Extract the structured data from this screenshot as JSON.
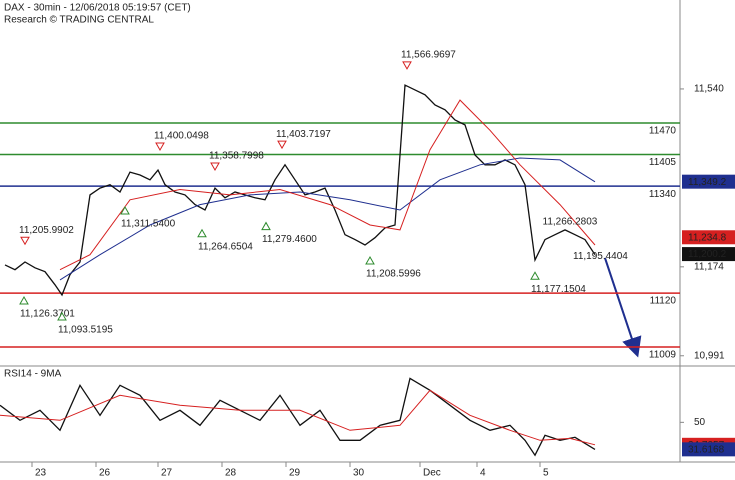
{
  "chart_data": [
    {
      "type": "line",
      "title": "DAX - 30min - 12/06/2018 05:19:57 (CET)",
      "subtitle": "Research © TRADING CENTRAL",
      "xlim": [
        0,
        136
      ],
      "xticks": [
        {
          "value": 6.4,
          "label": "23"
        },
        {
          "value": 19.2,
          "label": "26"
        },
        {
          "value": 31.6,
          "label": "27"
        },
        {
          "value": 44.4,
          "label": "28"
        },
        {
          "value": 57.2,
          "label": "29"
        },
        {
          "value": 70,
          "label": "30"
        },
        {
          "value": 84,
          "label": "Dec"
        },
        {
          "value": 95.4,
          "label": "4"
        },
        {
          "value": 108,
          "label": "5"
        }
      ],
      "ylim": [
        10972,
        11723
      ],
      "yticks": [
        {
          "value": 11540,
          "label": "11,540"
        },
        {
          "value": 11174,
          "label": "11,174"
        },
        {
          "value": 10991,
          "label": "10,991"
        }
      ],
      "series": [
        {
          "color": "#111111",
          "x": [
            1,
            3,
            5,
            7,
            9,
            11,
            12.4,
            14,
            16,
            18,
            20,
            22,
            24,
            26,
            28,
            30,
            31.6,
            33,
            35,
            37,
            39,
            41,
            43,
            45,
            47,
            49,
            51,
            53,
            55,
            57,
            59,
            61,
            63,
            65,
            67,
            69,
            71,
            73,
            75,
            77,
            79,
            81,
            83,
            85,
            87,
            89,
            91,
            93,
            95,
            97,
            99,
            101,
            103,
            105,
            107,
            109,
            111,
            113,
            115,
            117,
            119
          ],
          "values": [
            11178,
            11168,
            11184,
            11172,
            11164,
            11137,
            11116,
            11158,
            11184,
            11322,
            11336,
            11343,
            11328,
            11369,
            11363,
            11353,
            11373,
            11343,
            11328,
            11322,
            11302,
            11291,
            11336,
            11316,
            11328,
            11322,
            11316,
            11312,
            11353,
            11384,
            11353,
            11322,
            11328,
            11336,
            11291,
            11240,
            11230,
            11219,
            11234,
            11254,
            11260,
            11548,
            11538,
            11528,
            11507,
            11497,
            11476,
            11466,
            11404,
            11384,
            11384,
            11394,
            11384,
            11343,
            11188,
            11230,
            11240,
            11250,
            11240,
            11230,
            11199
          ]
        },
        {
          "color": "#1f2f8f",
          "x": [
            12,
            20,
            30,
            40,
            50,
            60,
            70,
            80,
            88,
            96,
            104,
            112,
            119
          ],
          "values": [
            11147,
            11199,
            11260,
            11302,
            11322,
            11328,
            11312,
            11291,
            11353,
            11384,
            11398,
            11394,
            11349
          ]
        },
        {
          "color": "#d62020",
          "x": [
            12,
            18,
            26,
            36,
            46,
            56,
            66,
            74,
            80,
            86,
            92,
            98,
            104,
            112,
            119
          ],
          "values": [
            11168,
            11199,
            11312,
            11333,
            11322,
            11333,
            11302,
            11260,
            11250,
            11415,
            11517,
            11455,
            11384,
            11302,
            11219
          ]
        }
      ],
      "levels": [
        {
          "value": 11470,
          "color": "#2e8b2e"
        },
        {
          "value": 11405,
          "color": "#2e8b2e"
        },
        {
          "value": 11340,
          "color": "#1f2f8f"
        },
        {
          "value": 11120,
          "color": "#d62020"
        },
        {
          "value": 11009,
          "color": "#d62020"
        }
      ],
      "annotations": [
        {
          "value": 11566.9697,
          "label": "11,566.9697",
          "x": 81.4,
          "marker": "high"
        },
        {
          "value": 11400.0498,
          "label": "11,400.0498",
          "x": 32,
          "marker": "high"
        },
        {
          "value": 11403.7197,
          "label": "11,403.7197",
          "x": 56.4,
          "marker": "high"
        },
        {
          "value": 11358.7998,
          "label": "11,358.7998",
          "x": 43,
          "marker": "high"
        },
        {
          "value": 11205.9902,
          "label": "11,205.9902",
          "x": 5,
          "marker": "high"
        },
        {
          "value": 11311.54,
          "label": "11,311.5400",
          "x": 25,
          "marker": "low"
        },
        {
          "value": 11264.6504,
          "label": "11,264.6504",
          "x": 40.4,
          "marker": "low"
        },
        {
          "value": 11279.46,
          "label": "11,279.4600",
          "x": 53.2,
          "marker": "low"
        },
        {
          "value": 11208.5996,
          "label": "11,208.5996",
          "x": 74,
          "marker": "low"
        },
        {
          "value": 11126.3701,
          "label": "11,126.3701",
          "x": 4.8,
          "marker": "low"
        },
        {
          "value": 11093.5195,
          "label": "11,093.5195",
          "x": 12.4,
          "marker": "low"
        },
        {
          "value": 11177.1504,
          "label": "11,177.1504",
          "x": 107,
          "marker": "low"
        },
        {
          "value": 11266.2803,
          "label": "11,266.2803",
          "x": 112.5,
          "marker": "none"
        },
        {
          "value": 11195.4404,
          "label": "11,195.4404",
          "x": 118.6,
          "marker": "none"
        }
      ],
      "badges": [
        {
          "value": 11349.2,
          "label": "11,349.2",
          "color": "#1f2f8f",
          "text_color": "#ffffff"
        },
        {
          "value": 11234.8,
          "label": "11,234.8",
          "color": "#d62020",
          "text_color": "#ffffff"
        },
        {
          "value": 11200.2,
          "label": "11,200.2",
          "color": "#111111",
          "text_color": "#ffffff"
        }
      ]
    },
    {
      "type": "line",
      "title": "RSI14 - 9MA",
      "xlim": [
        0,
        136
      ],
      "ylim": [
        23,
        87
      ],
      "yticks": [
        50
      ],
      "series": [
        {
          "color": "#111111",
          "x": [
            0,
            4,
            8,
            12,
            16,
            20,
            24,
            28,
            32,
            36,
            40,
            44,
            48,
            52,
            56,
            60,
            64,
            68,
            72,
            76,
            80,
            82,
            86,
            90,
            94,
            98,
            102,
            105,
            107,
            109,
            112,
            115,
            119
          ],
          "values": [
            61.6,
            51.4,
            58.2,
            44.6,
            75.2,
            54.8,
            75.2,
            68.4,
            51.4,
            58.2,
            48.0,
            65.0,
            58.2,
            51.4,
            68.4,
            48.0,
            58.2,
            37.8,
            37.8,
            48.0,
            51.4,
            79.9,
            71.8,
            61.6,
            51.4,
            44.6,
            48.0,
            37.8,
            27.6,
            41.2,
            37.8,
            39.8,
            31.6
          ]
        },
        {
          "color": "#d62020",
          "x": [
            0,
            12,
            24,
            36,
            48,
            60,
            70,
            80,
            86,
            94,
            102,
            108,
            114,
            119
          ],
          "values": [
            54.8,
            51.4,
            68.4,
            61.6,
            58.2,
            58.2,
            44.6,
            48.0,
            71.8,
            54.8,
            44.6,
            37.8,
            39.1,
            34.7
          ]
        }
      ],
      "badges": [
        {
          "value": 34.7057,
          "label": "34.7057",
          "color": "#d62020",
          "text_color": "#ffffff"
        },
        {
          "value": 31.6168,
          "label": "31.6168",
          "color": "#1f2f8f",
          "text_color": "#ffffff"
        }
      ]
    }
  ]
}
